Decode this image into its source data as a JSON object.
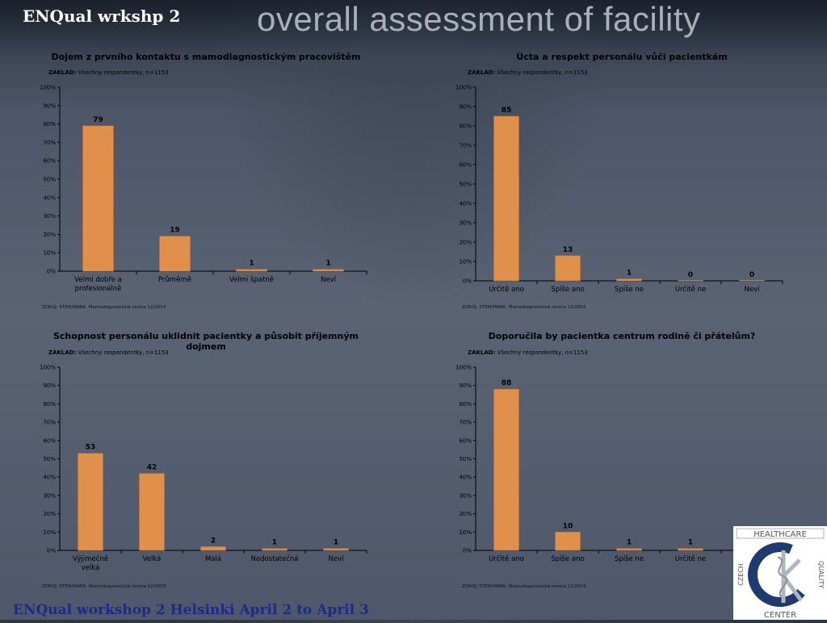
{
  "header": {
    "left_label": "ENQual wrkshp 2",
    "title": "overall assessment of facility"
  },
  "footer": "ENQual workshop 2 Helsinki April 2 to April 3",
  "logo": {
    "top_text": "HEALTHCARE",
    "left_text": "CZECH",
    "right_text": "QUALITY",
    "bottom_text": "CENTER"
  },
  "colors": {
    "bar": "#e0904a",
    "bar_stroke": "#c07030"
  },
  "charts": [
    {
      "title": "Dojem z prvního kontaktu s mamodiagnostickým pracovištěm",
      "zaklad_label": "ZÁKLAD:",
      "zaklad_text": "Všechny respondentky, n=1153",
      "source": "ZDROJ: STEM/MARK, Mamodiagnostická centra 12/2003",
      "y_ticks": [
        "0%",
        "10%",
        "20%",
        "30%",
        "40%",
        "50%",
        "60%",
        "70%",
        "80%",
        "90%",
        "100%"
      ]
    },
    {
      "title": "Úcta a respekt personálu vůči pacientkám",
      "zaklad_label": "ZÁKLAD:",
      "zaklad_text": "Všechny respondentky, n=1153",
      "source": "ZDROJ: STEM/MARK, Mamodiagnostická centra 12/2003",
      "y_ticks": [
        "0%",
        "10%",
        "20%",
        "30%",
        "40%",
        "50%",
        "60%",
        "70%",
        "80%",
        "90%",
        "100%"
      ]
    },
    {
      "title": "Schopnost personálu uklidnit pacientky a působit příjemným dojmem",
      "zaklad_label": "ZÁKLAD:",
      "zaklad_text": "Všechny respondentky, n=1153",
      "source": "ZDROJ: STEM/MARK, Mamodiagnostická centra 12/2003",
      "y_ticks": [
        "0%",
        "10%",
        "20%",
        "30%",
        "40%",
        "50%",
        "60%",
        "70%",
        "80%",
        "90%",
        "100%"
      ]
    },
    {
      "title": "Doporučila by pacientka centrum rodině či přátelům?",
      "zaklad_label": "ZÁKLAD:",
      "zaklad_text": "Všechny respondentky, n=1153",
      "source": "ZDROJ: STEM/MARK, Mamodiagnostická centra 12/2003",
      "y_ticks": [
        "0%",
        "10%",
        "20%",
        "30%",
        "40%",
        "50%",
        "60%",
        "70%",
        "80%",
        "90%",
        "100%"
      ]
    }
  ],
  "chart_data": [
    {
      "type": "bar",
      "title": "Dojem z prvního kontaktu s mamodiagnostickým pracovištěm",
      "categories": [
        "Velmi dobře a profesionálně",
        "Průměrně",
        "Velmi špatně",
        "Neví"
      ],
      "values": [
        79,
        19,
        1,
        1
      ],
      "ylim": [
        0,
        100
      ]
    },
    {
      "type": "bar",
      "title": "Úcta a respekt personálu vůči pacientkám",
      "categories": [
        "Určitě ano",
        "Spíše ano",
        "Spíše ne",
        "Určitě ne",
        "Neví"
      ],
      "values": [
        85,
        13,
        1,
        0,
        0
      ],
      "ylim": [
        0,
        100
      ]
    },
    {
      "type": "bar",
      "title": "Schopnost personálu uklidnit pacientky a působit příjemným dojmem",
      "categories": [
        "Výjimečně velká",
        "Velká",
        "Malá",
        "Nedostatečná",
        "Neví"
      ],
      "values": [
        53,
        42,
        2,
        1,
        1
      ],
      "ylim": [
        0,
        100
      ]
    },
    {
      "type": "bar",
      "title": "Doporučila by pacientka centrum rodině či přátelům?",
      "categories": [
        "Určitě ano",
        "Spíše ano",
        "Spíše ne",
        "Určitě ne",
        "Neví"
      ],
      "values": [
        88,
        10,
        1,
        1,
        1
      ],
      "ylim": [
        0,
        100
      ]
    }
  ]
}
